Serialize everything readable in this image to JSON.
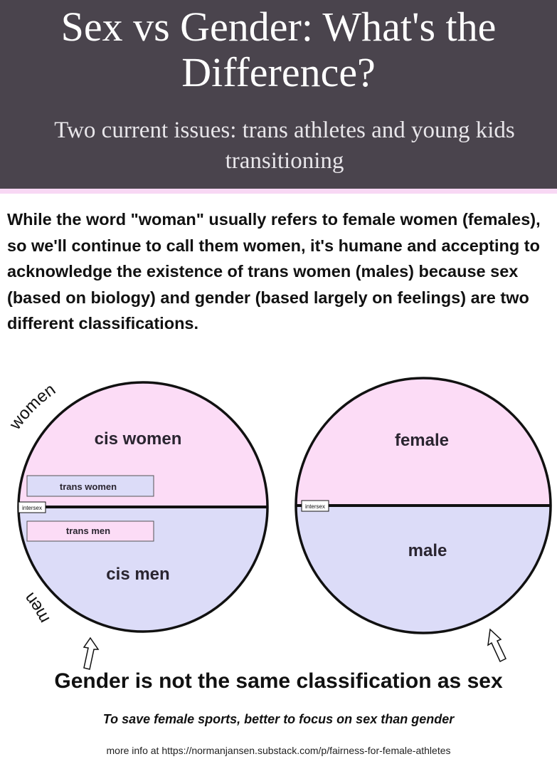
{
  "header": {
    "title": "Sex vs Gender: What's the Difference?",
    "subtitle": "Two current issues: trans athletes and young kids transitioning"
  },
  "intro": "While the word \"woman\" usually refers to female women (females), so we'll continue to call them women, it's humane and accepting to acknowledge the existence of trans women (males) because sex (based on biology) and gender (based largely on feelings) are two different classifications.",
  "gender_circle": {
    "outer_top_label": "women",
    "outer_bottom_label": "men",
    "top_label": "cis women",
    "bottom_label": "cis men",
    "box_top": "trans women",
    "box_bottom": "trans men",
    "divider_label": "intersex"
  },
  "sex_circle": {
    "top_label": "female",
    "bottom_label": "male",
    "divider_label": "intersex"
  },
  "colors": {
    "pink": "#fcdcf6",
    "lavender": "#dcdcf8",
    "header_bg": "#4a444d"
  },
  "caption": "Gender is not the same classification as sex",
  "tagline": "To save female sports, better to focus on sex than gender",
  "footer": "more info at https://normanjansen.substack.com/p/fairness-for-female-athletes"
}
